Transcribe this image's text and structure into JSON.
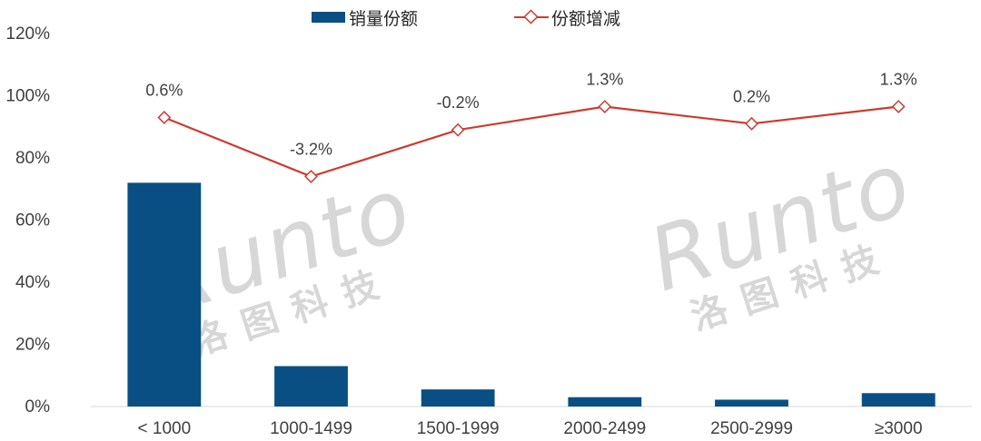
{
  "chart_data": {
    "type": "bar+line",
    "categories": [
      "< 1000",
      "1000-1499",
      "1500-1999",
      "2000-2499",
      "2500-2999",
      "≥3000"
    ],
    "series": [
      {
        "name": "销量份额",
        "kind": "bar",
        "color": "#0a4f83",
        "values": [
          72,
          13,
          5.5,
          3,
          2.2,
          4.3
        ]
      },
      {
        "name": "份额增减",
        "kind": "line",
        "color": "#cc3b2f",
        "values": [
          93,
          74,
          89,
          96.5,
          91,
          96.5
        ],
        "labels": [
          "0.6%",
          "-3.2%",
          "-0.2%",
          "1.3%",
          "0.2%",
          "1.3%"
        ]
      }
    ],
    "ylim": [
      0,
      120
    ],
    "yticks": [
      "0%",
      "20%",
      "40%",
      "60%",
      "80%",
      "100%",
      "120%"
    ],
    "ytick_values": [
      0,
      20,
      40,
      60,
      80,
      100,
      120
    ],
    "legend_position": "top-center",
    "grid": false
  },
  "watermark": {
    "brand": "Runto",
    "brand_cn": "洛图科技"
  }
}
